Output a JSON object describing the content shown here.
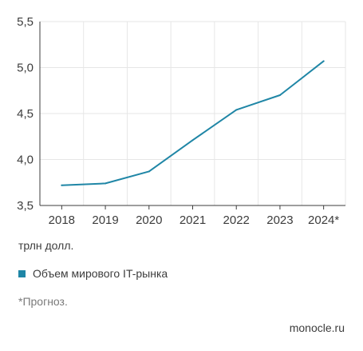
{
  "chart_data": {
    "type": "line",
    "x": [
      "2018",
      "2019",
      "2020",
      "2021",
      "2022",
      "2023",
      "2024*"
    ],
    "series": [
      {
        "name": "Объем мирового IT-рынка",
        "values": [
          3.72,
          3.74,
          3.87,
          4.21,
          4.54,
          4.7,
          5.07
        ],
        "color": "#1f86a6"
      }
    ],
    "ylim": [
      3.5,
      5.5
    ],
    "yticks": [
      "3,5",
      "4,0",
      "4,5",
      "5,0",
      "5,5"
    ],
    "ytick_values": [
      3.5,
      4.0,
      4.5,
      5.0,
      5.5
    ],
    "grid": true,
    "unit_label": "трлн долл.",
    "footnote": "*Прогноз.",
    "source": "monocle.ru"
  }
}
